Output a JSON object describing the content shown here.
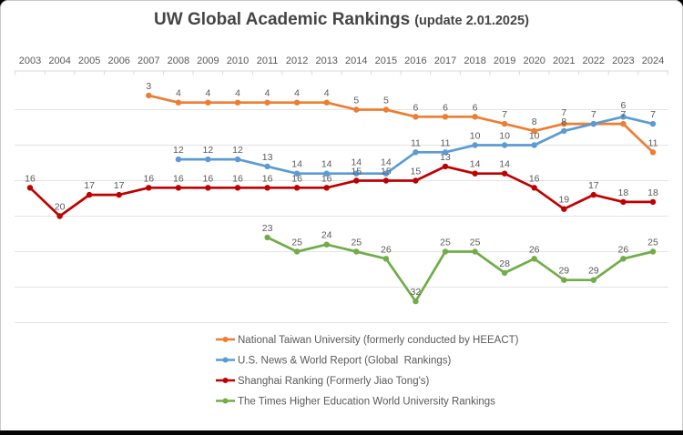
{
  "chart_data": {
    "type": "line",
    "title": "UW Global Academic Rankings",
    "subtitle": "(update 2.01.2025)",
    "x": [
      2003,
      2004,
      2005,
      2006,
      2007,
      2008,
      2009,
      2010,
      2011,
      2012,
      2013,
      2014,
      2015,
      2016,
      2017,
      2018,
      2019,
      2020,
      2021,
      2022,
      2023,
      2024
    ],
    "series": [
      {
        "key": "ntu",
        "name": "National Taiwan University (formerly conducted by HEEACT)",
        "color": "#ED7D31",
        "values": [
          null,
          null,
          null,
          null,
          3,
          4,
          4,
          4,
          4,
          4,
          4,
          5,
          5,
          6,
          6,
          6,
          7,
          8,
          7,
          7,
          7,
          11
        ]
      },
      {
        "key": "usnwr",
        "name": "U.S. News & World Report (Global  Rankings)",
        "color": "#5B9BD5",
        "values": [
          null,
          null,
          null,
          null,
          null,
          12,
          12,
          12,
          13,
          14,
          14,
          14,
          14,
          11,
          11,
          10,
          10,
          10,
          8,
          7,
          6,
          7
        ]
      },
      {
        "key": "shanghai",
        "name": "Shanghai Ranking (Formerly Jiao Tong's)",
        "color": "#C00000",
        "values": [
          16,
          20,
          17,
          17,
          16,
          16,
          16,
          16,
          16,
          16,
          16,
          15,
          15,
          15,
          13,
          14,
          14,
          16,
          19,
          17,
          18,
          18
        ]
      },
      {
        "key": "times",
        "name": "The Times Higher Education World University Rankings",
        "color": "#70AD47",
        "values": [
          null,
          null,
          null,
          null,
          null,
          null,
          null,
          null,
          23,
          25,
          24,
          25,
          26,
          32,
          25,
          25,
          28,
          26,
          29,
          29,
          26,
          25
        ]
      }
    ],
    "y_inverted": true,
    "ylim": [
      0,
      35
    ],
    "gridlines_at": [
      5,
      10,
      15,
      20,
      25,
      30,
      35
    ],
    "data_labels": true,
    "legend_position": "bottom",
    "label_color": "#595959",
    "gridline_color": "#e4e4e4",
    "axis_color": "#d9d9d9"
  }
}
